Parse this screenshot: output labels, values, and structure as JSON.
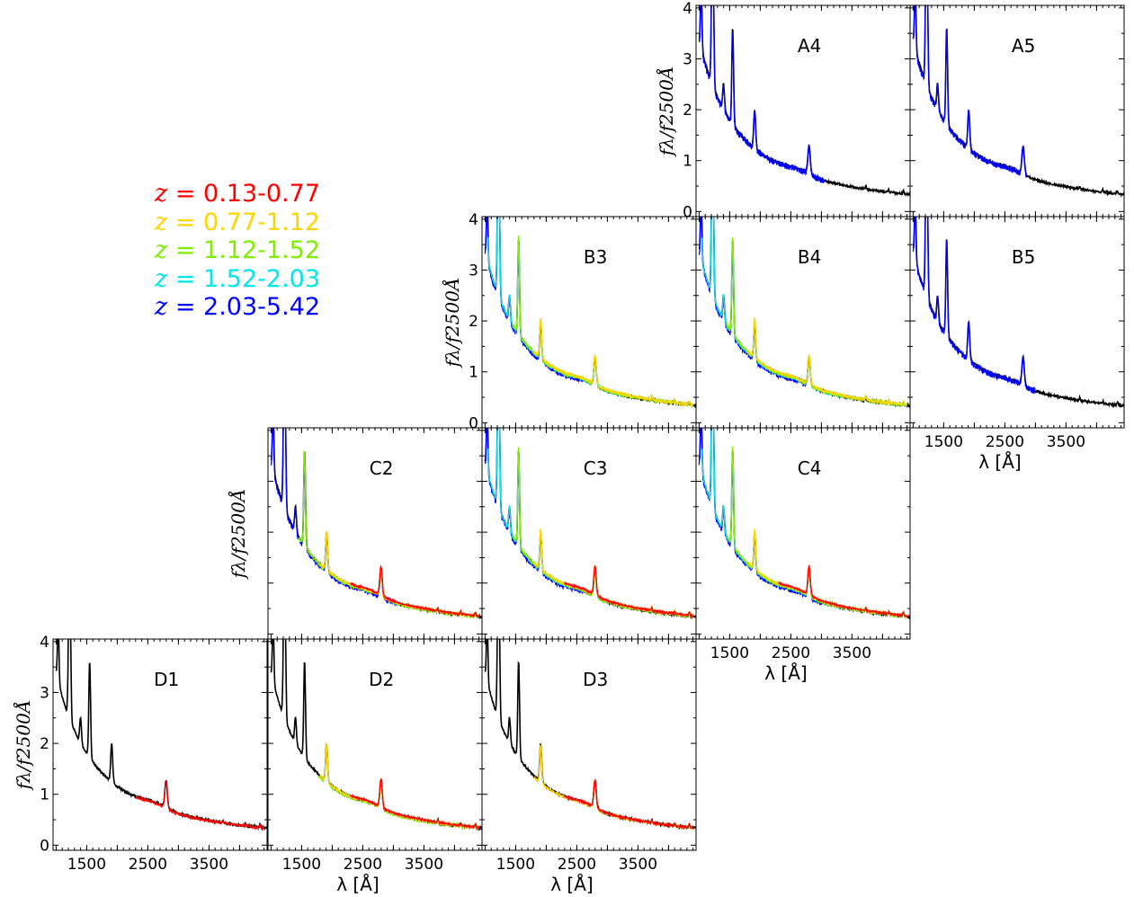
{
  "legend": {
    "entries": [
      {
        "label": "= 0.13-0.77",
        "color": "#ff0000"
      },
      {
        "label": "= 0.77-1.12",
        "color": "#ffd400"
      },
      {
        "label": "= 1.12-1.52",
        "color": "#7cf000"
      },
      {
        "label": "= 1.52-2.03",
        "color": "#00e5ee"
      },
      {
        "label": "= 2.03-5.42",
        "color": "#0000ff"
      }
    ],
    "var_symbol": "z"
  },
  "axes": {
    "ylabel": "fλ/f2500Å",
    "xlabel": "λ [Å]",
    "yticks": [
      "0",
      "1",
      "2",
      "3",
      "4"
    ],
    "xticks": [
      "1500",
      "2500",
      "3500"
    ]
  },
  "chart_data": {
    "type": "line",
    "xlabel": "λ [Å]",
    "ylabel": "f_λ / f_2500Å",
    "xlim": [
      950,
      4450
    ],
    "ylim": [
      -0.1,
      4.05
    ],
    "composite_color": "#000000",
    "panels": [
      {
        "name": "A4",
        "row": 0,
        "col": 3,
        "series": [
          {
            "color": "#0000ff",
            "x": [
              1000,
              3050
            ]
          }
        ]
      },
      {
        "name": "A5",
        "row": 0,
        "col": 4,
        "series": [
          {
            "color": "#0000ff",
            "x": [
              1000,
              2850
            ]
          }
        ]
      },
      {
        "name": "B3",
        "row": 1,
        "col": 2,
        "series": [
          {
            "color": "#0000ff",
            "x": [
              1000,
              2600
            ]
          },
          {
            "color": "#00e5ee",
            "x": [
              1050,
              3300
            ]
          },
          {
            "color": "#7cf000",
            "x": [
              1450,
              4400
            ]
          },
          {
            "color": "#ffd400",
            "x": [
              1800,
              4400
            ]
          }
        ]
      },
      {
        "name": "B4",
        "row": 1,
        "col": 3,
        "series": [
          {
            "color": "#0000ff",
            "x": [
              1000,
              2800
            ]
          },
          {
            "color": "#00e5ee",
            "x": [
              1050,
              3400
            ]
          },
          {
            "color": "#7cf000",
            "x": [
              1450,
              4400
            ]
          },
          {
            "color": "#ffd400",
            "x": [
              1800,
              4400
            ]
          }
        ]
      },
      {
        "name": "B5",
        "row": 1,
        "col": 4,
        "series": [
          {
            "color": "#0000ff",
            "x": [
              1000,
              3000
            ]
          }
        ]
      },
      {
        "name": "C2",
        "row": 2,
        "col": 1,
        "series": [
          {
            "color": "#0000ff",
            "x": [
              1000,
              3050
            ]
          },
          {
            "color": "#7cf000",
            "x": [
              1450,
              4400
            ]
          },
          {
            "color": "#ffd400",
            "x": [
              1800,
              4400
            ]
          },
          {
            "color": "#ff0000",
            "x": [
              2300,
              4400
            ]
          }
        ]
      },
      {
        "name": "C3",
        "row": 2,
        "col": 2,
        "series": [
          {
            "color": "#0000ff",
            "x": [
              1000,
              2600
            ]
          },
          {
            "color": "#00e5ee",
            "x": [
              1050,
              3300
            ]
          },
          {
            "color": "#7cf000",
            "x": [
              1450,
              4400
            ]
          },
          {
            "color": "#ffd400",
            "x": [
              1800,
              4400
            ]
          },
          {
            "color": "#ff0000",
            "x": [
              2300,
              4400
            ]
          }
        ]
      },
      {
        "name": "C4",
        "row": 2,
        "col": 3,
        "series": [
          {
            "color": "#0000ff",
            "x": [
              1000,
              3000
            ]
          },
          {
            "color": "#00e5ee",
            "x": [
              1050,
              3400
            ]
          },
          {
            "color": "#7cf000",
            "x": [
              1450,
              4400
            ]
          },
          {
            "color": "#ffd400",
            "x": [
              1800,
              4400
            ]
          },
          {
            "color": "#ff0000",
            "x": [
              2300,
              4400
            ]
          }
        ]
      },
      {
        "name": "D1",
        "row": 3,
        "col": 0,
        "series": [
          {
            "color": "#ff0000",
            "x": [
              2300,
              4400
            ]
          }
        ]
      },
      {
        "name": "D2",
        "row": 3,
        "col": 1,
        "series": [
          {
            "color": "#7cf000",
            "x": [
              1780,
              4300
            ]
          },
          {
            "color": "#ffd400",
            "x": [
              1800,
              4400
            ]
          },
          {
            "color": "#ff0000",
            "x": [
              2300,
              4400
            ]
          }
        ]
      },
      {
        "name": "D3",
        "row": 3,
        "col": 2,
        "series": [
          {
            "color": "#ffd400",
            "x": [
              1800,
              4400
            ]
          },
          {
            "color": "#ff0000",
            "x": [
              2300,
              4400
            ]
          }
        ]
      }
    ]
  }
}
